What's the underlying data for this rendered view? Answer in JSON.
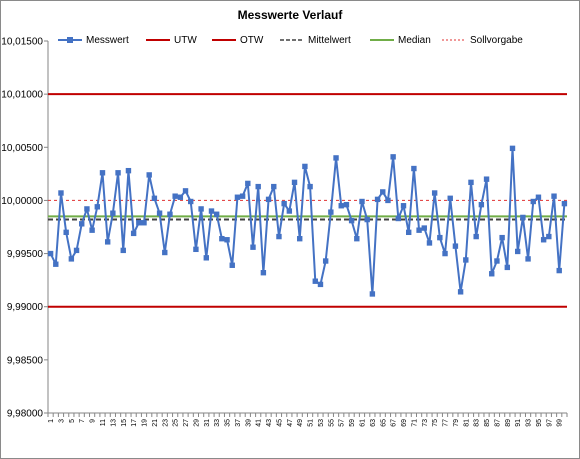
{
  "chart_data": {
    "type": "line",
    "title": "Messwerte Verlauf",
    "xlabel": "",
    "ylabel": "",
    "ylim": [
      9.98,
      10.015
    ],
    "y_ticks": [
      "10,01500",
      "10,01000",
      "10,00500",
      "10,00000",
      "9,99500",
      "9,99000",
      "9,98500",
      "9,98000"
    ],
    "y_tick_values": [
      10.015,
      10.01,
      10.005,
      10.0,
      9.995,
      9.99,
      9.985,
      9.98
    ],
    "x_tick_labels": [
      "1",
      "3",
      "5",
      "7",
      "9",
      "11",
      "13",
      "15",
      "17",
      "19",
      "21",
      "23",
      "25",
      "27",
      "29",
      "31",
      "33",
      "35",
      "37",
      "39",
      "41",
      "43",
      "45",
      "47",
      "49",
      "51",
      "53",
      "55",
      "57",
      "59",
      "61",
      "63",
      "65",
      "67",
      "69",
      "71",
      "73",
      "75",
      "77",
      "79",
      "81",
      "83",
      "85",
      "87",
      "89",
      "91",
      "93",
      "95",
      "97",
      "99"
    ],
    "grid": false,
    "legend_position": "top",
    "series": [
      {
        "name": "Messwert",
        "color": "#4472C4",
        "marker": "square",
        "x": [
          1,
          2,
          3,
          4,
          5,
          6,
          7,
          8,
          9,
          10,
          11,
          12,
          13,
          14,
          15,
          16,
          17,
          18,
          19,
          20,
          21,
          22,
          23,
          24,
          25,
          26,
          27,
          28,
          29,
          30,
          31,
          32,
          33,
          34,
          35,
          36,
          37,
          38,
          39,
          40,
          41,
          42,
          43,
          44,
          45,
          46,
          47,
          48,
          49,
          50,
          51,
          52,
          53,
          54,
          55,
          56,
          57,
          58,
          59,
          60,
          61,
          62,
          63,
          64,
          65,
          66,
          67,
          68,
          69,
          70,
          71,
          72,
          73,
          74,
          75,
          76,
          77,
          78,
          79,
          80,
          81,
          82,
          83,
          84,
          85,
          86,
          87,
          88,
          89,
          90,
          91,
          92,
          93,
          94,
          95,
          96,
          97,
          98,
          99,
          100
        ],
        "values": [
          9.995,
          9.994,
          10.0007,
          9.997,
          9.9945,
          9.9953,
          9.9978,
          9.9992,
          9.9972,
          9.9994,
          10.0026,
          9.9961,
          9.9988,
          10.0026,
          9.9953,
          10.0028,
          9.9969,
          9.9979,
          9.9979,
          10.0024,
          10.0002,
          9.9988,
          9.9951,
          9.9987,
          10.0004,
          10.0003,
          10.0009,
          9.9999,
          9.9954,
          9.9992,
          9.9946,
          9.999,
          9.9987,
          9.9964,
          9.9963,
          9.9939,
          10.0003,
          10.0004,
          10.0016,
          9.9956,
          10.0013,
          9.9932,
          10.0001,
          10.0013,
          9.9966,
          9.9997,
          9.999,
          10.0017,
          9.9964,
          10.0032,
          10.0013,
          9.9924,
          9.9921,
          9.9943,
          9.9989,
          10.004,
          9.9995,
          9.9996,
          9.9981,
          9.9964,
          9.9999,
          9.9982,
          9.9912,
          10.0001,
          10.0008,
          10.0,
          10.0041,
          9.9983,
          9.9995,
          9.997,
          10.003,
          9.9972,
          9.9974,
          9.996,
          10.0007,
          9.9965,
          9.995,
          10.0002,
          9.9957,
          9.9914,
          9.9944,
          10.0017,
          9.9966,
          9.9996,
          10.002,
          9.9931,
          9.9943,
          9.9965,
          9.9937,
          10.0049,
          9.9952,
          9.9984,
          9.9945,
          9.9999,
          10.0003,
          9.9963,
          9.9966,
          10.0004,
          9.9934,
          9.9997
        ]
      },
      {
        "name": "UTW",
        "color": "#C00000",
        "style": "solid",
        "value": 9.99
      },
      {
        "name": "OTW",
        "color": "#C00000",
        "style": "solid",
        "value": 10.01
      },
      {
        "name": "Mittelwert",
        "color": "#404040",
        "style": "dashed",
        "value": 9.9982
      },
      {
        "name": "Median",
        "color": "#70AD47",
        "style": "solid",
        "value": 9.9985
      },
      {
        "name": "Sollvorgabe",
        "color": "#E03030",
        "style": "dotted",
        "value": 10.0
      }
    ]
  }
}
